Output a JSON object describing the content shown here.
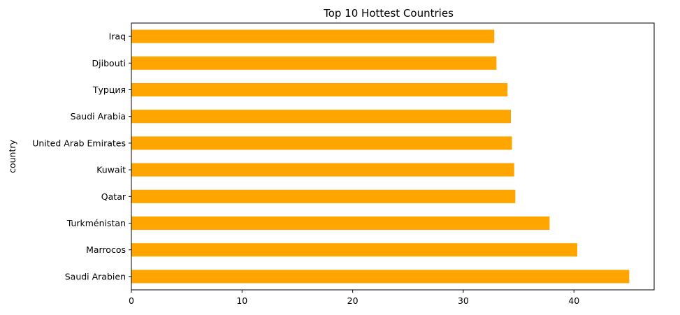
{
  "chart_data": {
    "type": "bar",
    "orientation": "horizontal",
    "title": "Top 10 Hottest Countries",
    "xlabel": "",
    "ylabel": "country",
    "categories": [
      "Saudi Arabien",
      "Marrocos",
      "Turkménistan",
      "Qatar",
      "Kuwait",
      "United Arab Emirates",
      "Saudi Arabia",
      "Турция",
      "Djibouti",
      "Iraq"
    ],
    "values": [
      45.0,
      40.3,
      37.8,
      34.7,
      34.6,
      34.4,
      34.3,
      34.0,
      33.0,
      32.8
    ],
    "xlim": [
      0,
      47.25
    ],
    "xticks": [
      0,
      10,
      20,
      30,
      40
    ],
    "grid": false,
    "bar_color": "#ffa500"
  }
}
